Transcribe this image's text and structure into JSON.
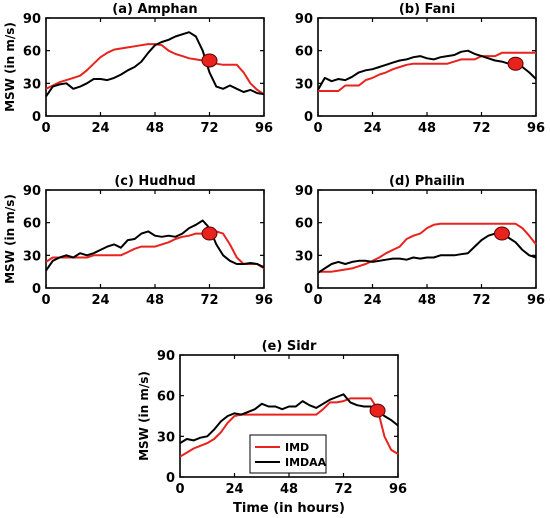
{
  "figure": {
    "ylabel": "MSW (in m/s)",
    "xlabel": "Time (in hours)",
    "legend_position": "bottom-center",
    "colors": {
      "imd": "#e8231d",
      "imdaa": "#000000",
      "landfall_marker": "#e8231d"
    }
  },
  "chart_data": [
    {
      "type": "line",
      "title": "(a) Amphan",
      "xlim": [
        0,
        96
      ],
      "ylim": [
        0,
        90
      ],
      "xticks": [
        0,
        24,
        48,
        72,
        96
      ],
      "yticks": [
        0,
        30,
        60,
        90
      ],
      "series": [
        {
          "name": "IMD",
          "x": [
            0,
            3,
            6,
            9,
            12,
            15,
            18,
            21,
            24,
            27,
            30,
            33,
            36,
            39,
            42,
            45,
            48,
            51,
            54,
            57,
            60,
            63,
            66,
            69,
            72,
            75,
            78,
            81,
            84,
            87,
            90,
            93,
            96
          ],
          "y": [
            25,
            28,
            31,
            33,
            35,
            37,
            42,
            48,
            54,
            58,
            61,
            62,
            63,
            64,
            65,
            66,
            66,
            65,
            60,
            57,
            55,
            53,
            52,
            51,
            50,
            48,
            47,
            47,
            47,
            40,
            30,
            24,
            20
          ]
        },
        {
          "name": "IMDAA",
          "x": [
            0,
            3,
            6,
            9,
            12,
            15,
            18,
            21,
            24,
            27,
            30,
            33,
            36,
            39,
            42,
            45,
            48,
            51,
            54,
            57,
            60,
            63,
            66,
            69,
            72,
            75,
            78,
            81,
            84,
            87,
            90,
            93,
            96
          ],
          "y": [
            18,
            27,
            29,
            30,
            25,
            27,
            30,
            34,
            34,
            33,
            35,
            38,
            42,
            45,
            50,
            58,
            65,
            68,
            70,
            73,
            75,
            77,
            73,
            60,
            40,
            27,
            25,
            28,
            25,
            22,
            24,
            21,
            20
          ]
        }
      ],
      "landfall": {
        "x": 72,
        "y": 51
      }
    },
    {
      "type": "line",
      "title": "(b) Fani",
      "xlim": [
        0,
        96
      ],
      "ylim": [
        0,
        90
      ],
      "xticks": [
        0,
        24,
        48,
        72,
        96
      ],
      "yticks": [
        0,
        30,
        60,
        90
      ],
      "series": [
        {
          "name": "IMD",
          "x": [
            0,
            3,
            6,
            9,
            12,
            15,
            18,
            21,
            24,
            27,
            30,
            33,
            36,
            39,
            42,
            45,
            48,
            51,
            54,
            57,
            60,
            63,
            66,
            69,
            72,
            75,
            78,
            81,
            84,
            87,
            90,
            93,
            96
          ],
          "y": [
            23,
            23,
            23,
            23,
            28,
            28,
            28,
            33,
            35,
            38,
            40,
            43,
            45,
            47,
            48,
            48,
            48,
            48,
            48,
            48,
            50,
            52,
            52,
            52,
            55,
            55,
            55,
            58,
            58,
            58,
            58,
            58,
            58
          ]
        },
        {
          "name": "IMDAA",
          "x": [
            0,
            3,
            6,
            9,
            12,
            15,
            18,
            21,
            24,
            27,
            30,
            33,
            36,
            39,
            42,
            45,
            48,
            51,
            54,
            57,
            60,
            63,
            66,
            69,
            72,
            75,
            78,
            81,
            84,
            87,
            90,
            93,
            96
          ],
          "y": [
            24,
            35,
            32,
            34,
            33,
            36,
            40,
            42,
            43,
            45,
            47,
            49,
            51,
            52,
            54,
            55,
            53,
            52,
            54,
            55,
            56,
            59,
            60,
            57,
            55,
            53,
            51,
            50,
            48,
            47,
            45,
            40,
            34
          ]
        }
      ],
      "landfall": {
        "x": 87,
        "y": 48
      }
    },
    {
      "type": "line",
      "title": "(c) Hudhud",
      "xlim": [
        0,
        96
      ],
      "ylim": [
        0,
        90
      ],
      "xticks": [
        0,
        24,
        48,
        72,
        96
      ],
      "yticks": [
        0,
        30,
        60,
        90
      ],
      "series": [
        {
          "name": "IMD",
          "x": [
            0,
            3,
            6,
            9,
            12,
            15,
            18,
            21,
            24,
            27,
            30,
            33,
            36,
            39,
            42,
            45,
            48,
            51,
            54,
            57,
            60,
            63,
            66,
            69,
            72,
            75,
            78,
            81,
            84,
            87,
            90,
            93,
            96
          ],
          "y": [
            24,
            28,
            28,
            28,
            28,
            28,
            28,
            30,
            30,
            30,
            30,
            30,
            33,
            36,
            38,
            38,
            38,
            40,
            42,
            45,
            47,
            48,
            50,
            50,
            52,
            52,
            50,
            40,
            28,
            22,
            22,
            22,
            18
          ]
        },
        {
          "name": "IMDAA",
          "x": [
            0,
            3,
            6,
            9,
            12,
            15,
            18,
            21,
            24,
            27,
            30,
            33,
            36,
            39,
            42,
            45,
            48,
            51,
            54,
            57,
            60,
            63,
            66,
            69,
            72,
            75,
            78,
            81,
            84,
            87,
            90,
            93,
            96
          ],
          "y": [
            16,
            25,
            28,
            30,
            28,
            32,
            30,
            32,
            35,
            38,
            40,
            37,
            44,
            45,
            50,
            52,
            48,
            47,
            48,
            47,
            50,
            55,
            58,
            62,
            55,
            40,
            30,
            25,
            22,
            22,
            23,
            22,
            19
          ]
        }
      ],
      "landfall": {
        "x": 72,
        "y": 50
      }
    },
    {
      "type": "line",
      "title": "(d) Phailin",
      "xlim": [
        0,
        96
      ],
      "ylim": [
        0,
        90
      ],
      "xticks": [
        0,
        24,
        48,
        72,
        96
      ],
      "yticks": [
        0,
        30,
        60,
        90
      ],
      "series": [
        {
          "name": "IMD",
          "x": [
            0,
            3,
            6,
            9,
            12,
            15,
            18,
            21,
            24,
            27,
            30,
            33,
            36,
            39,
            42,
            45,
            48,
            51,
            54,
            57,
            60,
            63,
            66,
            69,
            72,
            75,
            78,
            81,
            84,
            87,
            90,
            93,
            96
          ],
          "y": [
            15,
            15,
            15,
            16,
            17,
            18,
            20,
            22,
            25,
            28,
            32,
            35,
            38,
            45,
            48,
            50,
            55,
            58,
            59,
            59,
            59,
            59,
            59,
            59,
            59,
            59,
            59,
            59,
            59,
            59,
            55,
            48,
            40
          ]
        },
        {
          "name": "IMDAA",
          "x": [
            0,
            3,
            6,
            9,
            12,
            15,
            18,
            21,
            24,
            27,
            30,
            33,
            36,
            39,
            42,
            45,
            48,
            51,
            54,
            57,
            60,
            63,
            66,
            69,
            72,
            75,
            78,
            81,
            84,
            87,
            90,
            93,
            96
          ],
          "y": [
            14,
            18,
            22,
            24,
            22,
            24,
            25,
            25,
            24,
            25,
            26,
            27,
            27,
            26,
            28,
            27,
            28,
            28,
            30,
            30,
            30,
            31,
            32,
            38,
            44,
            48,
            50,
            51,
            46,
            42,
            35,
            30,
            28
          ]
        }
      ],
      "landfall": {
        "x": 81,
        "y": 50
      }
    },
    {
      "type": "line",
      "title": "(e) Sidr",
      "xlabel": "Time (in hours)",
      "xlim": [
        0,
        96
      ],
      "ylim": [
        0,
        90
      ],
      "xticks": [
        0,
        24,
        48,
        72,
        96
      ],
      "yticks": [
        0,
        30,
        60,
        90
      ],
      "series": [
        {
          "name": "IMD",
          "x": [
            0,
            3,
            6,
            9,
            12,
            15,
            18,
            21,
            24,
            27,
            30,
            33,
            36,
            39,
            42,
            45,
            48,
            51,
            54,
            57,
            60,
            63,
            66,
            69,
            72,
            75,
            78,
            81,
            84,
            87,
            90,
            93,
            96
          ],
          "y": [
            15,
            18,
            21,
            23,
            25,
            28,
            33,
            40,
            45,
            46,
            46,
            46,
            46,
            46,
            46,
            46,
            46,
            46,
            46,
            46,
            46,
            50,
            55,
            55,
            56,
            58,
            58,
            58,
            58,
            50,
            30,
            20,
            17
          ]
        },
        {
          "name": "IMDAA",
          "x": [
            0,
            3,
            6,
            9,
            12,
            15,
            18,
            21,
            24,
            27,
            30,
            33,
            36,
            39,
            42,
            45,
            48,
            51,
            54,
            57,
            60,
            63,
            66,
            69,
            72,
            75,
            78,
            81,
            84,
            87,
            90,
            93,
            96
          ],
          "y": [
            25,
            28,
            27,
            29,
            30,
            35,
            41,
            45,
            47,
            46,
            48,
            50,
            54,
            52,
            52,
            50,
            52,
            52,
            56,
            53,
            51,
            54,
            57,
            59,
            61,
            55,
            53,
            52,
            52,
            49,
            45,
            42,
            38
          ]
        }
      ],
      "landfall": {
        "x": 87,
        "y": 49
      },
      "legend": {
        "position": "bottom-center",
        "entries": [
          "IMD",
          "IMDAA"
        ]
      }
    }
  ]
}
